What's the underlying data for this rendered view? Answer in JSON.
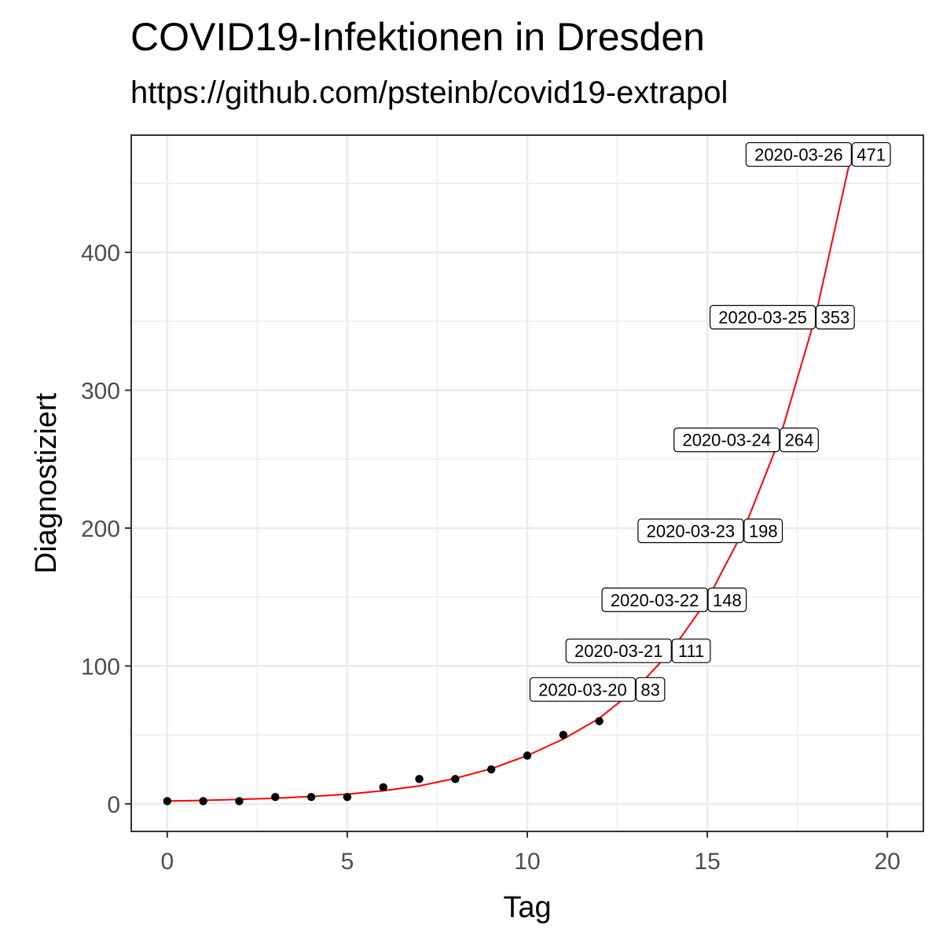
{
  "chart_data": {
    "type": "scatter",
    "title": "COVID19-Infektionen in Dresden",
    "subtitle": "https://github.com/psteinb/covid19-extrapol",
    "xlabel": "Tag",
    "ylabel": "Diagnostiziert",
    "xlim": [
      -1,
      21
    ],
    "ylim": [
      -20,
      485
    ],
    "x_ticks": [
      0,
      5,
      10,
      15,
      20
    ],
    "y_ticks": [
      0,
      100,
      200,
      300,
      400
    ],
    "grid": true,
    "series": [
      {
        "kind": "points",
        "color": "#000000",
        "x": [
          0,
          1,
          2,
          3,
          4,
          5,
          6,
          7,
          8,
          9,
          10,
          11,
          12
        ],
        "y": [
          2,
          2,
          2,
          5,
          5,
          5,
          12,
          18,
          18,
          25,
          35,
          50,
          60
        ]
      },
      {
        "kind": "fit-line",
        "color": "#ff0000",
        "x": [
          0,
          1,
          2,
          3,
          4,
          5,
          6,
          7,
          8,
          9,
          10,
          11,
          12,
          13,
          14,
          15,
          16,
          17,
          18,
          19
        ],
        "y": [
          2,
          2.5,
          3.2,
          4.1,
          5.3,
          7,
          9.5,
          13,
          18.5,
          25.5,
          35,
          47,
          62,
          83,
          111,
          148,
          198,
          264,
          353,
          471
        ]
      }
    ],
    "annotations": [
      {
        "x": 13,
        "y": 83,
        "date": "2020-03-20",
        "value": "83"
      },
      {
        "x": 14,
        "y": 111,
        "date": "2020-03-21",
        "value": "111"
      },
      {
        "x": 15,
        "y": 148,
        "date": "2020-03-22",
        "value": "148"
      },
      {
        "x": 16,
        "y": 198,
        "date": "2020-03-23",
        "value": "198"
      },
      {
        "x": 17,
        "y": 264,
        "date": "2020-03-24",
        "value": "264"
      },
      {
        "x": 18,
        "y": 353,
        "date": "2020-03-25",
        "value": "353"
      },
      {
        "x": 19,
        "y": 471,
        "date": "2020-03-26",
        "value": "471"
      }
    ]
  }
}
